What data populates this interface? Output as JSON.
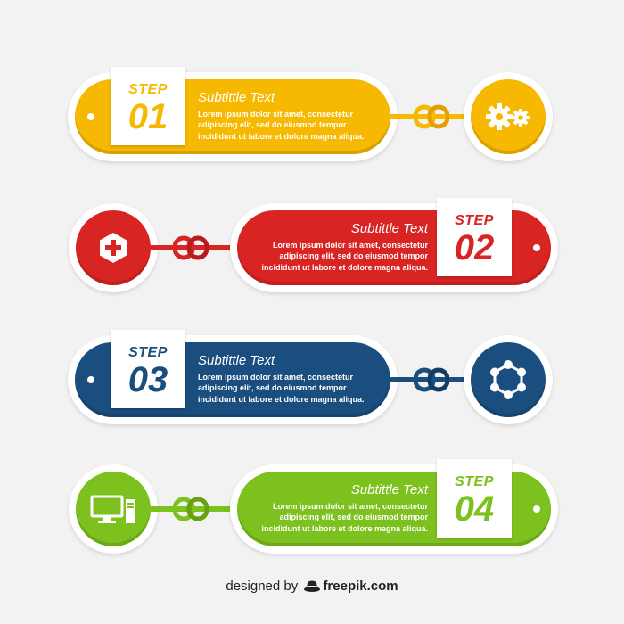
{
  "colors": {
    "yellow": "#f6b800",
    "yellow_dark": "#e4a000",
    "red": "#d92424",
    "red_dark": "#b81b1b",
    "blue": "#1a4e7f",
    "blue_dark": "#123c63",
    "green": "#7cc11d",
    "green_dark": "#64a30f",
    "background": "#f2f2f2"
  },
  "steps": [
    {
      "label": "STEP",
      "number": "01",
      "subtitle": "Subtittle Text",
      "body": "Lorem ipsum dolor sit amet, consectetur adipiscing elit, sed do eiusmod tempor incididunt ut labore et dolore magna aliqua.",
      "icon": "gears-icon",
      "color": "yellow"
    },
    {
      "label": "STEP",
      "number": "02",
      "subtitle": "Subtittle Text",
      "body": "Lorem ipsum dolor sit amet, consectetur adipiscing elit, sed do eiusmod tempor incididunt ut labore et dolore magna aliqua.",
      "icon": "hexagon-plus-icon",
      "color": "red"
    },
    {
      "label": "STEP",
      "number": "03",
      "subtitle": "Subtittle Text",
      "body": "Lorem ipsum dolor sit amet, consectetur adipiscing elit, sed do eiusmod tempor incididunt ut labore et dolore magna aliqua.",
      "icon": "network-icon",
      "color": "blue"
    },
    {
      "label": "STEP",
      "number": "04",
      "subtitle": "Subtittle Text",
      "body": "Lorem ipsum dolor sit amet, consectetur adipiscing elit, sed do eiusmod tempor incididunt ut labore et dolore magna aliqua.",
      "icon": "computer-icon",
      "color": "green"
    }
  ],
  "credit": {
    "prefix": "designed by",
    "brand": "freepik.com",
    "icon": "freepik-hat-icon"
  }
}
